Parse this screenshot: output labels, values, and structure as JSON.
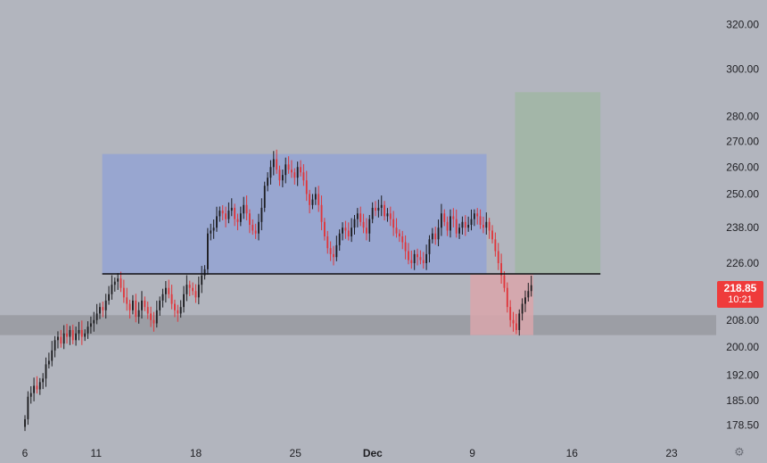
{
  "colors": {
    "background": "#b2b5be",
    "up_candle": "#1c1c1f",
    "down_candle": "#e0353a",
    "range_box": "#98a6d0",
    "target_box": "#a3b6a8",
    "stop_box": "#d9a6ac",
    "support_band": "#9c9ea5",
    "breakout_line": "#0f0f12",
    "price_badge": "#ef3b3b"
  },
  "price_badge": {
    "price": "218.85",
    "countdown": "10:21"
  },
  "settings_icon": "gear-icon",
  "chart_data": {
    "type": "candlestick",
    "y_axis": {
      "scale": "log",
      "range": [
        174,
        330
      ],
      "position": "right",
      "ticks": [
        "320.00",
        "300.00",
        "280.00",
        "270.00",
        "260.00",
        "250.00",
        "238.00",
        "226.00",
        "208.00",
        "200.00",
        "192.00",
        "185.00",
        "178.50"
      ],
      "tick_values": [
        320,
        300,
        280,
        270,
        260,
        250,
        238,
        226,
        208,
        200,
        192,
        185,
        178.5
      ]
    },
    "x_axis": {
      "range": [
        0,
        31.5
      ],
      "ticks": [
        {
          "label": "6",
          "x": 0,
          "bold": false
        },
        {
          "label": "11",
          "x": 3.5,
          "bold": false
        },
        {
          "label": "18",
          "x": 8.4,
          "bold": false
        },
        {
          "label": "25",
          "x": 13.3,
          "bold": false
        },
        {
          "label": "Dec",
          "x": 17.1,
          "bold": true
        },
        {
          "label": "9",
          "x": 22.0,
          "bold": false
        },
        {
          "label": "16",
          "x": 26.9,
          "bold": false
        },
        {
          "label": "23",
          "x": 31.8,
          "bold": false
        }
      ]
    },
    "range_box": {
      "x": [
        3.8,
        22.7
      ],
      "y": [
        222.5,
        265
      ]
    },
    "breakout_level": {
      "price": 222.5,
      "x": [
        3.8,
        28.3
      ]
    },
    "target_box": {
      "x": [
        24.1,
        28.3
      ],
      "y": [
        222.5,
        290
      ]
    },
    "stop_box": {
      "x": [
        21.9,
        25.0
      ],
      "y": [
        203.5,
        222.5
      ]
    },
    "support_band": {
      "y": [
        203.5,
        209.5
      ]
    },
    "last_price": 218.85,
    "candles_close": [
      180,
      186,
      187,
      189,
      188,
      190,
      191,
      195,
      196,
      199,
      202,
      203,
      201,
      204,
      203,
      205,
      202,
      204,
      205,
      203,
      204,
      206,
      207,
      208,
      210,
      212,
      211,
      214,
      216,
      219,
      220,
      221,
      218,
      215,
      213,
      211,
      214,
      209,
      211,
      214,
      212,
      210,
      208,
      207,
      211,
      214,
      216,
      218,
      216,
      213,
      211,
      210,
      212,
      216,
      219,
      218,
      217,
      215,
      219,
      222,
      224,
      236,
      237,
      238,
      242,
      244,
      243,
      241,
      244,
      245,
      241,
      240,
      243,
      246,
      243,
      239,
      237,
      236,
      240,
      245,
      253,
      256,
      260,
      263,
      259,
      255,
      257,
      261,
      259,
      258,
      256,
      260,
      258,
      255,
      250,
      246,
      248,
      250,
      246,
      240,
      235,
      231,
      229,
      228,
      232,
      236,
      238,
      237,
      235,
      238,
      241,
      243,
      240,
      238,
      236,
      241,
      245,
      244,
      245,
      246,
      242,
      243,
      241,
      238,
      236,
      235,
      233,
      230,
      227,
      226,
      229,
      228,
      227,
      226,
      229,
      234,
      236,
      234,
      238,
      243,
      240,
      237,
      242,
      241,
      236,
      238,
      240,
      238,
      239,
      241,
      243,
      242,
      239,
      238,
      240,
      237,
      234,
      230,
      226,
      222,
      218,
      212,
      208,
      207,
      205,
      210,
      213,
      215,
      217,
      218.85
    ]
  }
}
